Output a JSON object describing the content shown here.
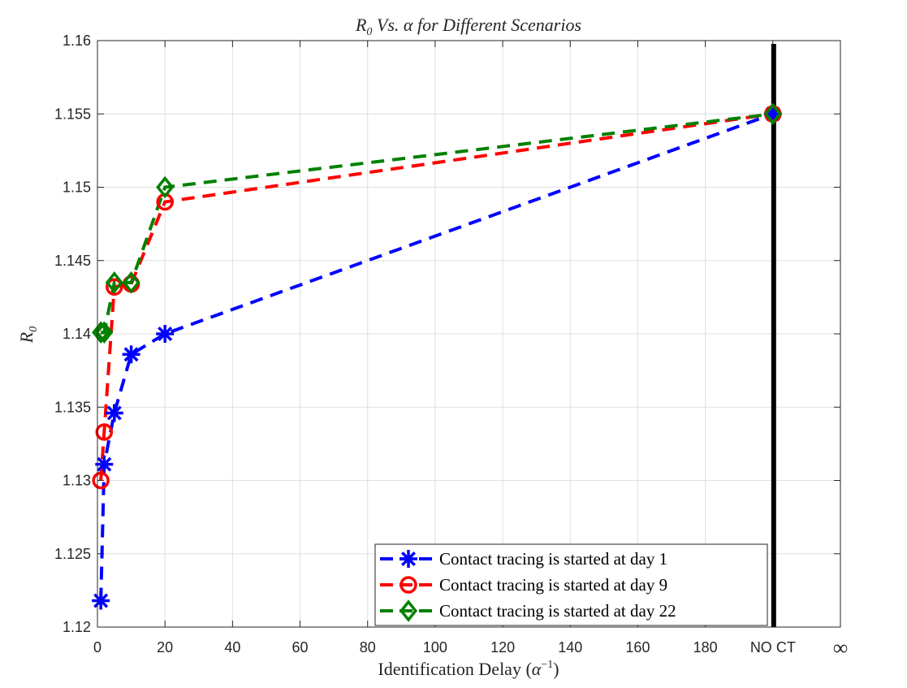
{
  "chart_data": {
    "type": "line",
    "title": "R0 Vs. α for Different Scenarios",
    "xlabel": "Identification Delay (α⁻¹)",
    "ylabel": "R0",
    "xlim": [
      0,
      220
    ],
    "ylim": [
      1.12,
      1.16
    ],
    "x_ticks": [
      0,
      20,
      40,
      60,
      80,
      100,
      120,
      140,
      160,
      180,
      200,
      220
    ],
    "x_tick_labels": [
      "0",
      "20",
      "40",
      "60",
      "80",
      "100",
      "120",
      "140",
      "160",
      "180",
      "NO CT",
      "∞"
    ],
    "y_ticks": [
      1.12,
      1.125,
      1.13,
      1.135,
      1.14,
      1.145,
      1.15,
      1.155,
      1.16
    ],
    "y_tick_labels": [
      "1.12",
      "1.125",
      "1.13",
      "1.135",
      "1.14",
      "1.145",
      "1.15",
      "1.155",
      "1.16"
    ],
    "grid": true,
    "legend_position": "bottom-right",
    "vertical_line_x": 200,
    "series": [
      {
        "name": "Contact tracing is started at day 1",
        "color": "#0000ff",
        "marker": "asterisk",
        "x": [
          1,
          2,
          5,
          10,
          20,
          200
        ],
        "y": [
          1.1218,
          1.1311,
          1.1346,
          1.1386,
          1.14,
          1.155
        ]
      },
      {
        "name": "Contact tracing is started at day 9",
        "color": "#ff0000",
        "marker": "circle",
        "x": [
          1,
          2,
          5,
          10,
          20,
          200
        ],
        "y": [
          1.13,
          1.1333,
          1.1432,
          1.1434,
          1.149,
          1.155
        ]
      },
      {
        "name": "Contact tracing is started at day 22",
        "color": "#008000",
        "marker": "diamond",
        "x": [
          1,
          2,
          5,
          10,
          20,
          200
        ],
        "y": [
          1.1401,
          1.1401,
          1.1435,
          1.1435,
          1.15,
          1.155
        ]
      }
    ]
  }
}
